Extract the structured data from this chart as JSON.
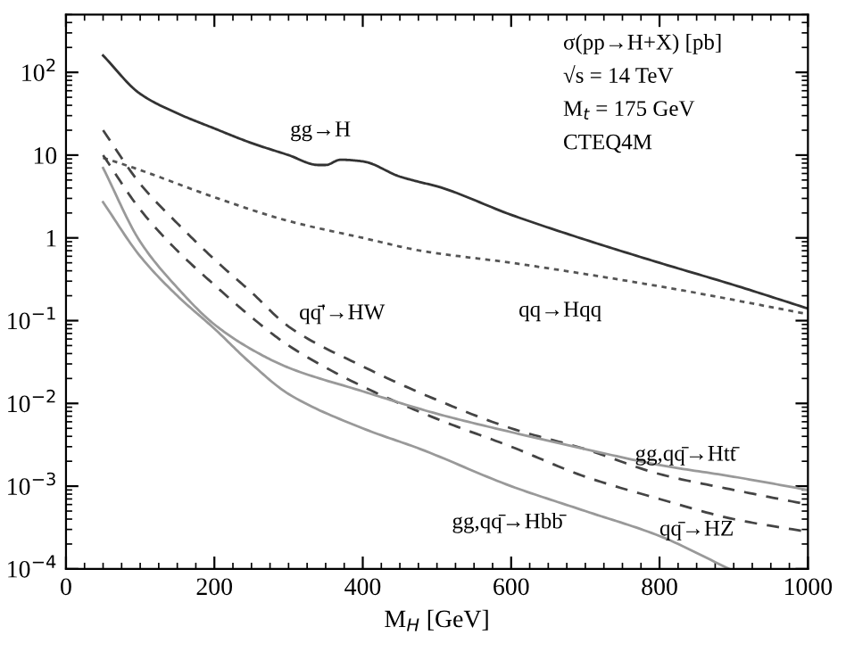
{
  "chart_data": {
    "type": "line",
    "xlabel": "M$_{H}$ [GeV]",
    "log": "y",
    "grid": false,
    "xlim": [
      0,
      1000
    ],
    "xticks": [
      0,
      200,
      400,
      600,
      800,
      1000
    ],
    "ylim": [
      0.0001,
      500
    ],
    "yticks": [
      {
        "value": 0.0001,
        "label": "10$^{−4}$"
      },
      {
        "value": 0.001,
        "label": "10$^{−3}$"
      },
      {
        "value": 0.01,
        "label": "10$^{−2}$"
      },
      {
        "value": 0.1,
        "label": "10$^{−1}$"
      },
      {
        "value": 1,
        "label": "1"
      },
      {
        "value": 10,
        "label": "10"
      },
      {
        "value": 100,
        "label": "10$^{2}$"
      }
    ],
    "series": [
      {
        "name": "gg→H",
        "color": "#333333",
        "line_style": "solid",
        "x": [
          50,
          100,
          150,
          200,
          250,
          300,
          340,
          350,
          370,
          400,
          450,
          478,
          500,
          600,
          700,
          800,
          900,
          1000
        ],
        "values": [
          160,
          55,
          32,
          21,
          14,
          10,
          7.6,
          7.6,
          8.8,
          8.4,
          5.5,
          4.7,
          4.2,
          1.9,
          0.95,
          0.5,
          0.27,
          0.14
        ]
      },
      {
        "name": "qq→Hqq",
        "color": "#555555",
        "line_style": "dotted",
        "x": [
          50,
          100,
          200,
          300,
          400,
          478,
          600,
          800,
          1000
        ],
        "values": [
          9.3,
          6.6,
          3.1,
          1.6,
          1.0,
          0.7,
          0.5,
          0.26,
          0.12
        ]
      },
      {
        "name": "qq̄'→HW",
        "color": "#444444",
        "line_style": "dashed",
        "x": [
          50,
          100,
          150,
          200,
          250,
          300,
          400,
          500,
          600,
          700,
          800,
          900,
          1000
        ],
        "values": [
          20,
          4.5,
          1.5,
          0.55,
          0.22,
          0.085,
          0.028,
          0.011,
          0.005,
          0.0028,
          0.0014,
          0.0009,
          0.0006
        ]
      },
      {
        "name": "qq̄→HZ",
        "color": "#444444",
        "line_style": "dashed",
        "x": [
          50,
          100,
          150,
          200,
          250,
          300,
          400,
          500,
          600,
          700,
          800,
          900,
          1000
        ],
        "values": [
          10,
          2.2,
          0.7,
          0.27,
          0.11,
          0.05,
          0.016,
          0.0065,
          0.003,
          0.0013,
          0.0007,
          0.0004,
          0.00028
        ]
      },
      {
        "name": "gg,qq̄→Htt̄",
        "color": "#999999",
        "line_style": "solid",
        "x": [
          50,
          100,
          150,
          200,
          250,
          300,
          400,
          500,
          600,
          700,
          800,
          900,
          1000
        ],
        "values": [
          7,
          0.9,
          0.25,
          0.09,
          0.045,
          0.027,
          0.014,
          0.0075,
          0.0045,
          0.0028,
          0.0018,
          0.0013,
          0.0009
        ]
      },
      {
        "name": "gg,qq̄→Hbb̄",
        "color": "#999999",
        "line_style": "solid",
        "x": [
          50,
          100,
          150,
          200,
          250,
          300,
          400,
          478,
          600,
          700,
          800,
          894
        ],
        "values": [
          2.7,
          0.6,
          0.2,
          0.08,
          0.03,
          0.013,
          0.005,
          0.0028,
          0.001,
          0.0005,
          0.00025,
          0.0001
        ]
      }
    ],
    "annotations": [
      "σ(pp→H+X) [pb]",
      "√s = 14 TeV",
      "M$_{t}$ = 175 GeV",
      "CTEQ4M"
    ]
  }
}
